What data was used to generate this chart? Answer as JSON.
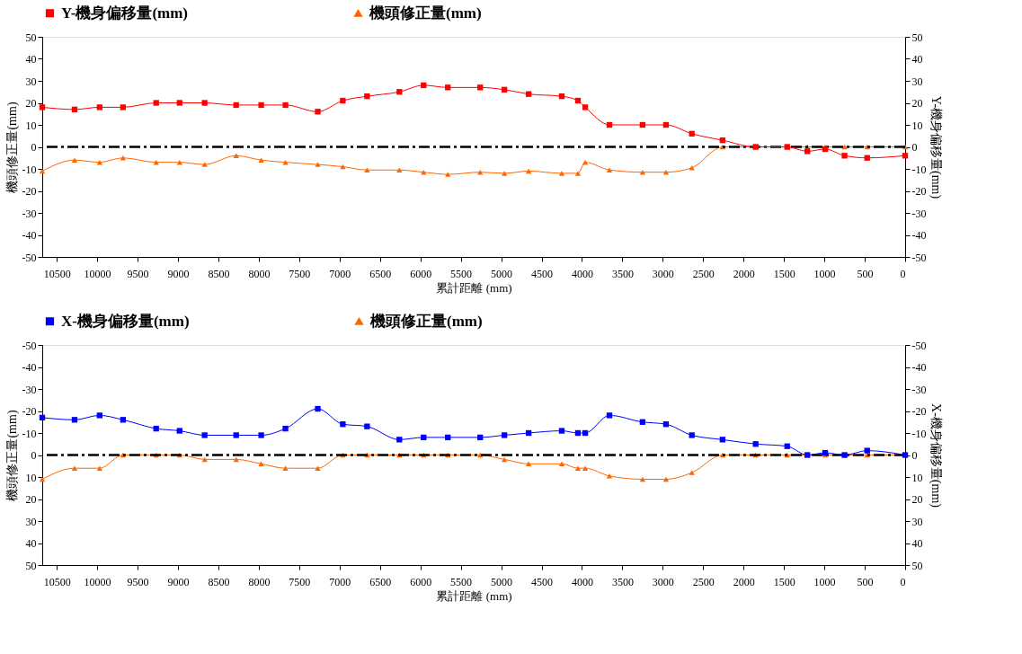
{
  "chart_data": [
    {
      "type": "line",
      "x": [
        10680,
        10280,
        9970,
        9680,
        9270,
        8980,
        8670,
        8280,
        7970,
        7670,
        7270,
        6960,
        6660,
        6260,
        5960,
        5660,
        5260,
        4960,
        4660,
        4250,
        4050,
        3960,
        3660,
        3250,
        2960,
        2640,
        2260,
        1850,
        1460,
        1210,
        990,
        750,
        470,
        0
      ],
      "xlabel": "累計距離 (mm)",
      "ylabel": "機頭修正量(mm)",
      "y2label": "Y-機身偏移量(mm)",
      "xlim": [
        10680,
        0
      ],
      "xticks": [
        10500,
        10000,
        9500,
        9000,
        8500,
        8000,
        7500,
        7000,
        6500,
        6000,
        5500,
        5000,
        4500,
        4000,
        3500,
        3000,
        2500,
        2000,
        1500,
        1000,
        500,
        0
      ],
      "ylim": [
        -50,
        50
      ],
      "yticks": [
        -50,
        -40,
        -30,
        -20,
        -10,
        0,
        10,
        20,
        30,
        40,
        50
      ],
      "y2lim": [
        -50,
        50
      ],
      "y2ticks": [
        -50,
        -40,
        -30,
        -20,
        -10,
        0,
        10,
        20,
        30,
        40,
        50
      ],
      "legend": "top",
      "series": [
        {
          "name": "Y-機身偏移量(mm)",
          "color": "#ff0000",
          "axis": "y2",
          "marker": "square",
          "values": [
            18,
            17,
            18,
            18,
            20,
            20,
            20,
            19,
            19,
            19,
            16,
            21,
            23,
            25,
            28,
            27,
            27,
            26,
            24,
            23,
            21,
            18,
            10,
            10,
            10,
            6,
            3,
            0,
            0,
            -2,
            -1,
            -4,
            -5,
            -4
          ]
        },
        {
          "name": "機頭修正量(mm)",
          "color": "#ff6600",
          "axis": "y",
          "marker": "triangle",
          "values": [
            -11,
            -6,
            -7,
            -5,
            -7,
            -7,
            -8,
            -4,
            -6,
            -7,
            -8,
            -9,
            -10.5,
            -10.5,
            -11.5,
            -12.5,
            -11.5,
            -12,
            -11,
            -12,
            -12,
            -7,
            -10.5,
            -11.5,
            -11.5,
            -9.5,
            0,
            0,
            0,
            0,
            0,
            0,
            0,
            0
          ]
        }
      ],
      "ref_lines": [
        {
          "axis": "y",
          "value": 0,
          "color": "#000000",
          "line_style": "dashed"
        }
      ]
    },
    {
      "type": "line",
      "x": [
        10680,
        10280,
        9970,
        9680,
        9270,
        8980,
        8670,
        8280,
        7970,
        7670,
        7270,
        6960,
        6660,
        6260,
        5960,
        5660,
        5260,
        4960,
        4660,
        4250,
        4050,
        3960,
        3660,
        3250,
        2960,
        2640,
        2260,
        1850,
        1460,
        1210,
        990,
        750,
        470,
        0
      ],
      "xlabel": "累計距離 (mm)",
      "ylabel": "機頭修正量(mm)",
      "y2label": "X-機身偏移量(mm)",
      "xlim": [
        10680,
        0
      ],
      "xticks": [
        10500,
        10000,
        9500,
        9000,
        8500,
        8000,
        7500,
        7000,
        6500,
        6000,
        5500,
        5000,
        4500,
        4000,
        3500,
        3000,
        2500,
        2000,
        1500,
        1000,
        500,
        0
      ],
      "ylim": [
        50,
        -50
      ],
      "yticks": [
        -50,
        -40,
        -30,
        -20,
        -10,
        0,
        10,
        20,
        30,
        40,
        50
      ],
      "y2lim": [
        50,
        -50
      ],
      "y2ticks": [
        -50,
        -40,
        -30,
        -20,
        -10,
        0,
        10,
        20,
        30,
        40,
        50
      ],
      "legend": "top",
      "series": [
        {
          "name": "X-機身偏移量(mm)",
          "color": "#0000ff",
          "axis": "y2",
          "marker": "square",
          "values": [
            -17,
            -16,
            -18,
            -16,
            -12,
            -11,
            -9,
            -9,
            -9,
            -12,
            -21,
            -14,
            -13,
            -7,
            -8,
            -8,
            -8,
            -9,
            -10,
            -11,
            -10,
            -10,
            -18,
            -15,
            -14,
            -9,
            -7,
            -5,
            -4,
            0,
            -1,
            0,
            -2,
            0
          ]
        },
        {
          "name": "機頭修正量(mm)",
          "color": "#ff6600",
          "axis": "y",
          "marker": "triangle",
          "values": [
            11,
            6,
            6,
            0,
            0,
            0,
            2,
            2,
            4,
            6,
            6,
            0,
            0,
            0,
            0,
            0,
            0,
            2,
            4,
            4,
            6,
            6,
            9.5,
            11,
            11,
            8,
            0,
            0,
            0,
            0,
            0,
            0,
            0,
            0
          ]
        }
      ],
      "ref_lines": [
        {
          "axis": "y",
          "value": 0,
          "color": "#000000",
          "line_style": "dashed"
        }
      ]
    }
  ]
}
